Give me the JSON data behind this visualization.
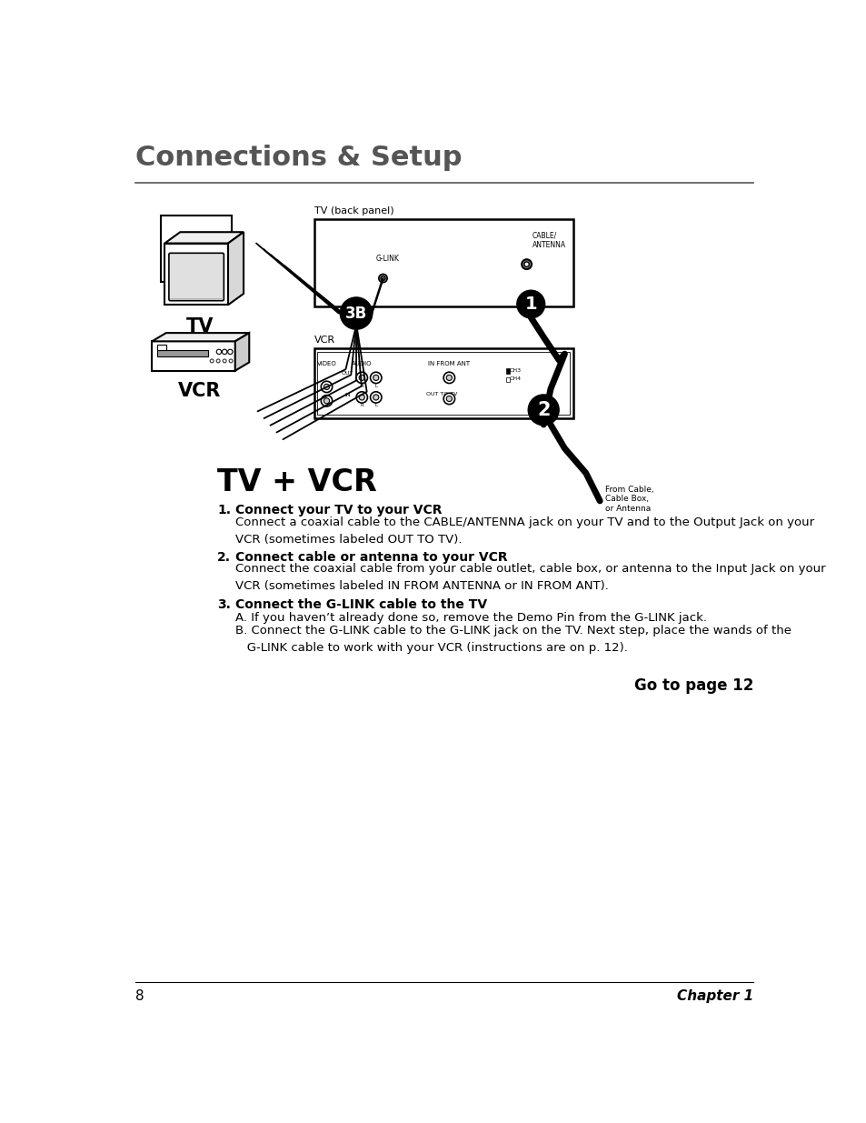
{
  "page_bg": "#ffffff",
  "header_title": "Connections & Setup",
  "header_color": "#555555",
  "header_fontsize": 22,
  "section_title": "TV + VCR",
  "section_title_fontsize": 24,
  "diagram_label_tv_back": "TV (back panel)",
  "diagram_label_vcr": "VCR",
  "diagram_label_glink": "G-LINK",
  "diagram_label_cable_ant": "CABLE/\nANTENNA",
  "diagram_label_from_cable": "From Cable,\nCable Box,\nor Antenna",
  "diagram_label_tv": "TV",
  "diagram_label_vcr2": "VCR",
  "step1_num": "1.",
  "step1_bold": "Connect your TV to your VCR",
  "step1_text": "Connect a coaxial cable to the CABLE/ANTENNA jack on your TV and to the Output Jack on your\nVCR (sometimes labeled OUT TO TV).",
  "step2_num": "2.",
  "step2_bold": "Connect cable or antenna to your VCR",
  "step2_text": "Connect the coaxial cable from your cable outlet, cable box, or antenna to the Input Jack on your\nVCR (sometimes labeled IN FROM ANTENNA or IN FROM ANT).",
  "step3_num": "3.",
  "step3_bold": "Connect the G-LINK cable to the TV",
  "step3a_text": "A. If you haven’t already done so, remove the Demo Pin from the G-LINK jack.",
  "step3b_text": "B. Connect the G-LINK cable to the G-LINK jack on the TV. Next step, place the wands of the\n   G-LINK cable to work with your VCR (instructions are on p. 12).",
  "goto_text": "Go to page 12",
  "footer_page": "8",
  "footer_chapter": "Chapter 1",
  "text_color": "#000000",
  "gray_color": "#555555",
  "body_fontsize": 9.5,
  "bold_fontsize": 10,
  "label_fontsize": 6.5
}
